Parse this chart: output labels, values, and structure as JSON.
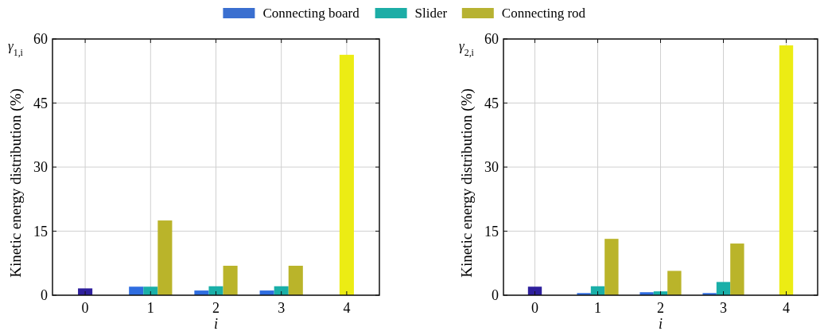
{
  "chart_data": [
    {
      "type": "bar",
      "ylabel": "Kinetic energy distribution (%)",
      "xlabel": "i",
      "annotations": [
        "γ$_{1,i}$"
      ],
      "categories": [
        "0",
        "1",
        "2",
        "3",
        "4"
      ],
      "ylim": [
        0,
        60
      ],
      "yticks": [
        0,
        15,
        30,
        45,
        60
      ],
      "grid": true,
      "legend": "top",
      "series": [
        {
          "name": "Connecting board",
          "color": "#3a6fd0",
          "colors": [
            "#2e1f9c",
            "#2f6de0",
            "#2f6de0",
            "#2f6de0",
            null
          ],
          "values": [
            1.6,
            2.0,
            1.1,
            1.1,
            null
          ]
        },
        {
          "name": "Slider",
          "color": "#1cada6",
          "colors": [
            null,
            "#1aafa8",
            "#1aafa8",
            "#1aafa8",
            null
          ],
          "values": [
            null,
            2.0,
            2.1,
            2.1,
            null
          ]
        },
        {
          "name": "Connecting rod",
          "color": "#b7b232",
          "colors": [
            null,
            "#bab42a",
            "#bab42a",
            "#bab42a",
            "#ecec14"
          ],
          "values": [
            null,
            17.5,
            6.9,
            6.9,
            56.3
          ]
        }
      ]
    },
    {
      "type": "bar",
      "ylabel": "Kinetic energy distribution (%)",
      "xlabel": "i",
      "annotations": [
        "γ$_{2,i}$"
      ],
      "categories": [
        "0",
        "1",
        "2",
        "3",
        "4"
      ],
      "ylim": [
        0,
        60
      ],
      "yticks": [
        0,
        15,
        30,
        45,
        60
      ],
      "grid": true,
      "series": [
        {
          "colors": [
            "#2e1f9c",
            "#2f6de0",
            "#2f6de0",
            "#2f6de0",
            null
          ],
          "values": [
            2.0,
            0.5,
            0.7,
            0.5,
            null
          ]
        },
        {
          "colors": [
            null,
            "#1aafa8",
            "#1aafa8",
            "#1aafa8",
            null
          ],
          "values": [
            null,
            2.1,
            0.9,
            3.1,
            null
          ]
        },
        {
          "colors": [
            null,
            "#bab42a",
            "#bab42a",
            "#bab42a",
            "#ecec14"
          ],
          "values": [
            null,
            13.2,
            5.7,
            12.1,
            58.5
          ]
        }
      ]
    }
  ]
}
